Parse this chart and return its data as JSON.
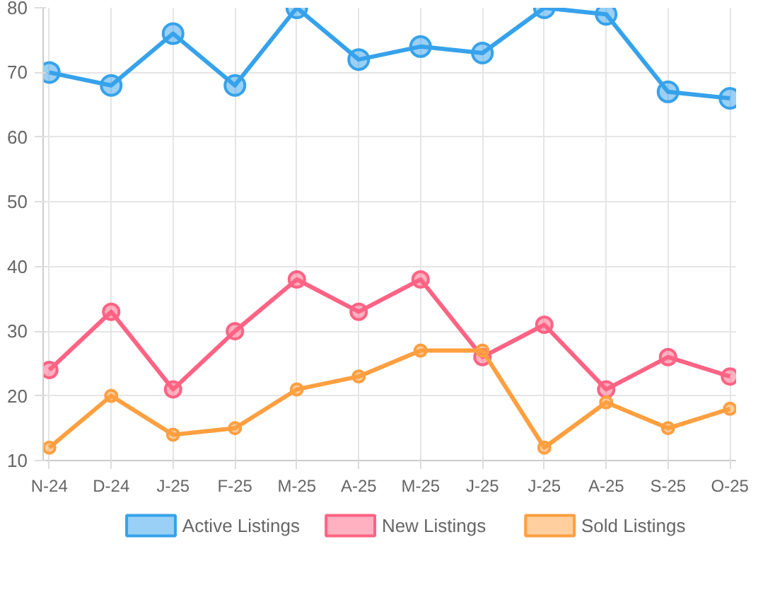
{
  "chart_data": {
    "type": "line",
    "categories": [
      "N-24",
      "D-24",
      "J-25",
      "F-25",
      "M-25",
      "A-25",
      "M-25",
      "J-25",
      "J-25",
      "A-25",
      "S-25",
      "O-25"
    ],
    "series": [
      {
        "name": "Active Listings",
        "color": "#36a2eb",
        "values": [
          70,
          68,
          76,
          68,
          80,
          72,
          74,
          73,
          80,
          79,
          67,
          66
        ]
      },
      {
        "name": "New Listings",
        "color": "#ff6384",
        "values": [
          24,
          33,
          21,
          30,
          38,
          33,
          38,
          26,
          31,
          21,
          26,
          23
        ]
      },
      {
        "name": "Sold Listings",
        "color": "#ff9f40",
        "values": [
          12,
          20,
          14,
          15,
          21,
          23,
          27,
          27,
          12,
          19,
          15,
          18
        ]
      }
    ],
    "ylim": [
      10,
      80
    ],
    "yticks": [
      10,
      20,
      30,
      40,
      50,
      60,
      70,
      80
    ],
    "grid": true,
    "legend": "bottom",
    "marker": "circle",
    "line_style": "solid"
  }
}
